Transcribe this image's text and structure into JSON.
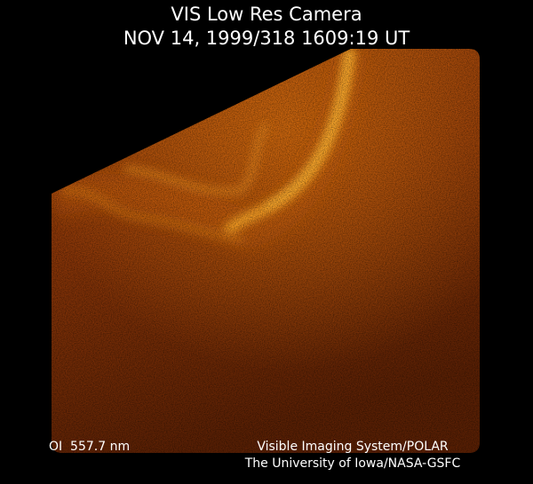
{
  "header": {
    "title": "VIS Low Res Camera",
    "timestamp": "NOV 14, 1999/318 1609:19 UT"
  },
  "footer": {
    "wavelength": "OI  557.7 nm",
    "instrument": "Visible Imaging System/POLAR",
    "institution": "The University of Iowa/NASA-GSFC"
  }
}
